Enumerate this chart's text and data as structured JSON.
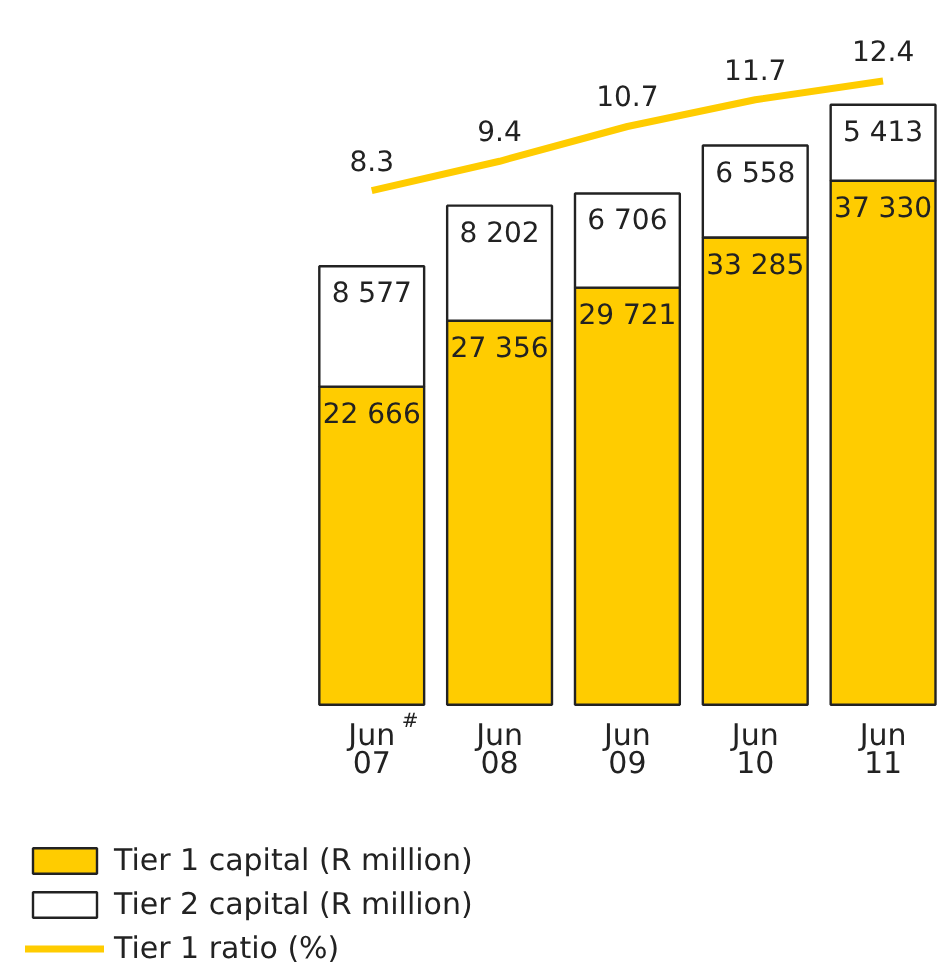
{
  "chart_data": {
    "type": "bar",
    "stacked": true,
    "categories": [
      "Jun$^{#}$\n07",
      "Jun\n08",
      "Jun\n09",
      "Jun\n10",
      "Jun\n11"
    ],
    "series": [
      {
        "name": "Tier 1 capital (R million)",
        "color": "#ffcc00",
        "values": [
          22666,
          27356,
          29721,
          33285,
          37330
        ]
      },
      {
        "name": "Tier 2 capital (R million)",
        "color": "#ffffff",
        "values": [
          8577,
          8202,
          6706,
          6558,
          5413
        ]
      },
      {
        "name": "Tier 1 ratio (%)",
        "type": "line",
        "axis": "y2",
        "color": "#ffcc00",
        "values": [
          8.3,
          9.4,
          10.7,
          11.7,
          12.4
        ]
      }
    ],
    "data_labels": true,
    "tick_labels": "x",
    "grid": false,
    "legend": "bottom",
    "marker": "none"
  }
}
